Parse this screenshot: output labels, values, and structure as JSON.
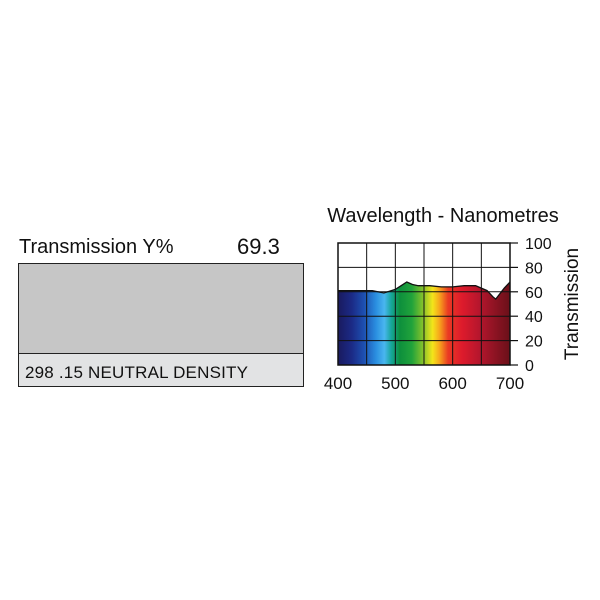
{
  "swatch": {
    "transmission_label": "Transmission Y%",
    "transmission_value": "69.3",
    "filter_name": "298 .15 NEUTRAL DENSITY",
    "color": "#c6c6c6"
  },
  "chart_data": {
    "type": "area",
    "title": "Wavelength - Nanometres",
    "xlabel": "",
    "ylabel": "Transmission",
    "xlim": [
      400,
      700
    ],
    "ylim": [
      0,
      100
    ],
    "x_ticks": [
      400,
      500,
      600,
      700
    ],
    "y_ticks": [
      0,
      20,
      40,
      60,
      80,
      100
    ],
    "grid": true,
    "series": [
      {
        "x": [
          400,
          420,
          440,
          460,
          480,
          500,
          510,
          520,
          530,
          540,
          550,
          560,
          580,
          600,
          620,
          640,
          650,
          660,
          670,
          675,
          680,
          690,
          700
        ],
        "y": [
          61,
          61,
          61,
          61,
          59,
          62,
          65,
          68,
          66,
          65,
          65,
          65,
          64,
          64,
          65,
          65,
          63,
          61,
          56,
          54,
          57,
          63,
          68
        ]
      }
    ]
  }
}
